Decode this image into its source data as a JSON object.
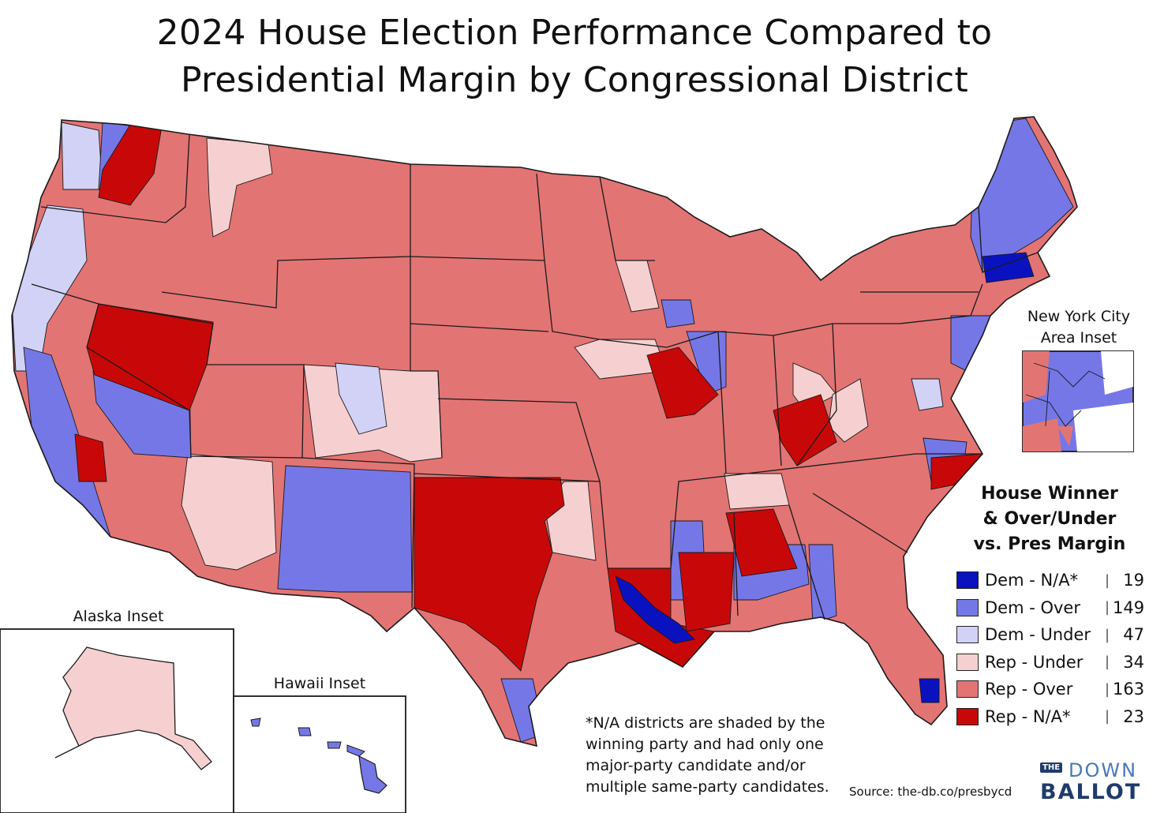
{
  "title": {
    "line1": "2024 House Election Performance Compared to",
    "line2": "Presidential Margin by Congressional District"
  },
  "colors": {
    "dem_na": "#0a12c0",
    "dem_over": "#7677e6",
    "dem_under": "#d2d2f6",
    "rep_under": "#f6d0d0",
    "rep_over": "#e37474",
    "rep_na": "#c80808",
    "border": "#1a1a1a"
  },
  "insets": {
    "nyc": "New York City\nArea Inset",
    "nyc_line1": "New York City",
    "nyc_line2": "Area Inset",
    "alaska": "Alaska Inset",
    "hawaii": "Hawaii Inset"
  },
  "legend": {
    "title_line1": "House Winner",
    "title_line2": "& Over/Under",
    "title_line3": "vs. Pres Margin",
    "items": [
      {
        "label": "Dem - N/A*",
        "count": "19",
        "color": "#0a12c0"
      },
      {
        "label": "Dem - Over",
        "count": "149",
        "color": "#7677e6"
      },
      {
        "label": "Dem - Under",
        "count": "47",
        "color": "#d2d2f6"
      },
      {
        "label": "Rep - Under",
        "count": "34",
        "color": "#f6d0d0"
      },
      {
        "label": "Rep - Over",
        "count": "163",
        "color": "#e37474"
      },
      {
        "label": "Rep - N/A*",
        "count": "23",
        "color": "#c80808"
      }
    ]
  },
  "note": "*N/A districts are shaded by the winning party and had only one major-party candidate and/or multiple same-party candidates.",
  "source": "Source: the-db.co/presbycd",
  "logo": {
    "the": "THE",
    "down": "DOWN",
    "ballot": "BALLOT"
  }
}
